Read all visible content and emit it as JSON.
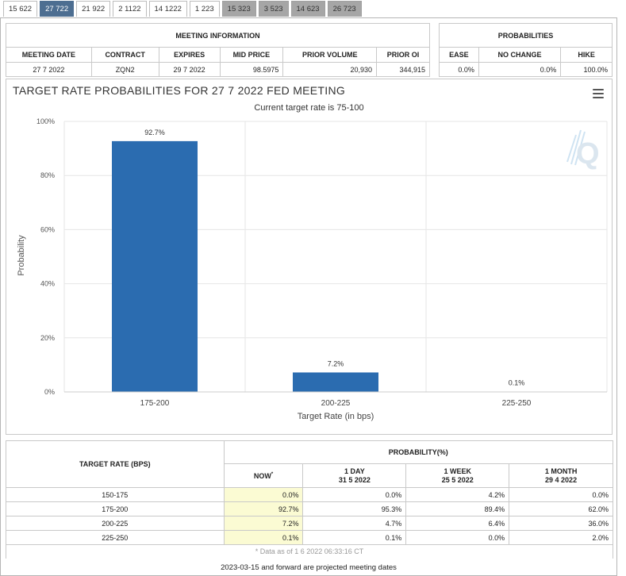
{
  "tabs": [
    {
      "label": "15 622",
      "state": "normal"
    },
    {
      "label": "27 722",
      "state": "active"
    },
    {
      "label": "21 922",
      "state": "normal"
    },
    {
      "label": "2 1122",
      "state": "normal"
    },
    {
      "label": "14 1222",
      "state": "normal"
    },
    {
      "label": "1 223",
      "state": "normal"
    },
    {
      "label": "15 323",
      "state": "future"
    },
    {
      "label": "3 523",
      "state": "future"
    },
    {
      "label": "14 623",
      "state": "future"
    },
    {
      "label": "26 723",
      "state": "future"
    }
  ],
  "meeting_info": {
    "title": "MEETING INFORMATION",
    "headers": [
      "MEETING DATE",
      "CONTRACT",
      "EXPIRES",
      "MID PRICE",
      "PRIOR VOLUME",
      "PRIOR OI"
    ],
    "values": [
      "27 7 2022",
      "ZQN2",
      "29 7 2022",
      "98.5975",
      "20,930",
      "344,915"
    ]
  },
  "probabilities": {
    "title": "PROBABILITIES",
    "headers": [
      "EASE",
      "NO CHANGE",
      "HIKE"
    ],
    "values": [
      "0.0%",
      "0.0%",
      "100.0%"
    ]
  },
  "chart_data": {
    "type": "bar",
    "title": "TARGET RATE PROBABILITIES FOR 27 7 2022 FED MEETING",
    "subtitle": "Current target rate is 75-100",
    "categories": [
      "175-200",
      "200-225",
      "225-250"
    ],
    "values": [
      92.7,
      7.2,
      0.1
    ],
    "value_labels": [
      "92.7%",
      "7.2%",
      "0.1%"
    ],
    "xlabel": "Target Rate (in bps)",
    "ylabel": "Probability",
    "ylim": [
      0,
      100
    ],
    "yticks": [
      0,
      20,
      40,
      60,
      80,
      100
    ],
    "ytick_labels": [
      "0%",
      "20%",
      "40%",
      "60%",
      "80%",
      "100%"
    ],
    "bar_color": "#2b6cb0",
    "grid": true,
    "watermark": "Q"
  },
  "bottom_table": {
    "rate_header": "TARGET RATE (BPS)",
    "prob_header": "PROBABILITY(%)",
    "col_now": "NOW",
    "col_now_mark": "*",
    "col_1day": "1 DAY",
    "col_1day_date": "31 5 2022",
    "col_1week": "1 WEEK",
    "col_1week_date": "25 5 2022",
    "col_1month": "1 MONTH",
    "col_1month_date": "29 4 2022",
    "rows": [
      {
        "rate": "150-175",
        "now": "0.0%",
        "day": "0.0%",
        "week": "4.2%",
        "month": "0.0%"
      },
      {
        "rate": "175-200",
        "now": "92.7%",
        "day": "95.3%",
        "week": "89.4%",
        "month": "62.0%"
      },
      {
        "rate": "200-225",
        "now": "7.2%",
        "day": "4.7%",
        "week": "6.4%",
        "month": "36.0%"
      },
      {
        "rate": "225-250",
        "now": "0.1%",
        "day": "0.1%",
        "week": "0.0%",
        "month": "2.0%"
      }
    ],
    "data_as_of": "* Data as of 1 6 2022 06:33:16 CT"
  },
  "footer": "2023-03-15 and forward are projected meeting dates"
}
